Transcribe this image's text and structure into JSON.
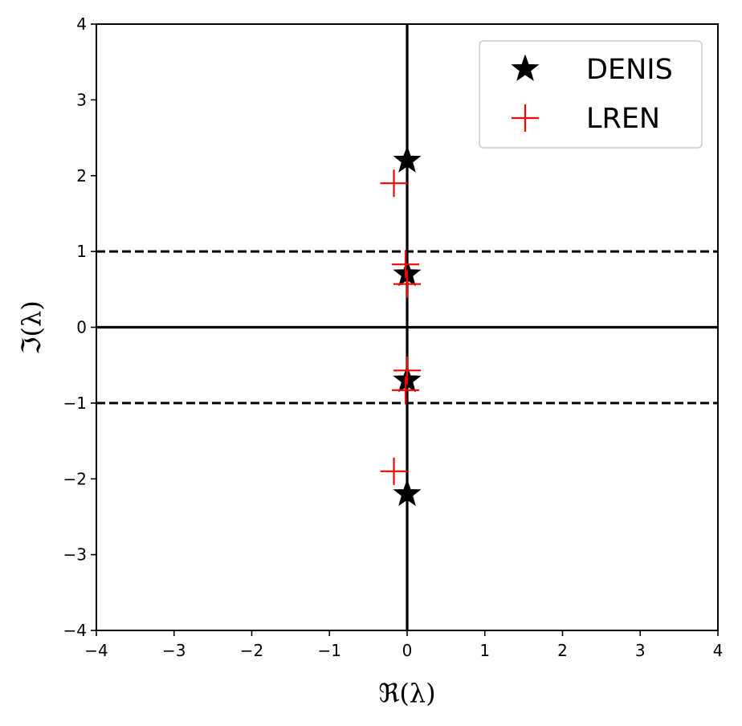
{
  "chart_data": {
    "type": "scatter",
    "title": "",
    "xlabel": "ℜ(λ)",
    "ylabel": "ℑ(λ)",
    "xlim": [
      -4,
      4
    ],
    "ylim": [
      -4,
      4
    ],
    "xticks": [
      -4,
      -3,
      -2,
      -1,
      0,
      1,
      2,
      3,
      4
    ],
    "yticks": [
      -4,
      -3,
      -2,
      -1,
      0,
      1,
      2,
      3,
      4
    ],
    "xtick_labels": [
      "−4",
      "−3",
      "−2",
      "−1",
      "0",
      "1",
      "2",
      "3",
      "4"
    ],
    "ytick_labels": [
      "−4",
      "−3",
      "−2",
      "−1",
      "0",
      "1",
      "2",
      "3",
      "4"
    ],
    "grid": false,
    "legend_position": "top-right",
    "reference_lines": [
      {
        "orientation": "vertical",
        "value": 0,
        "style": "solid"
      },
      {
        "orientation": "horizontal",
        "value": 0,
        "style": "solid"
      },
      {
        "orientation": "horizontal",
        "value": 1,
        "style": "dashed"
      },
      {
        "orientation": "horizontal",
        "value": -1,
        "style": "dashed"
      }
    ],
    "series": [
      {
        "name": "DENIS",
        "marker": "star",
        "color": "#000000",
        "points": [
          {
            "x": 0.0,
            "y": 2.2
          },
          {
            "x": 0.0,
            "y": 0.7
          },
          {
            "x": 0.0,
            "y": -0.7
          },
          {
            "x": 0.0,
            "y": -2.2
          }
        ]
      },
      {
        "name": "LREN",
        "marker": "plus",
        "color": "#ff0000",
        "points": [
          {
            "x": -0.17,
            "y": 1.9
          },
          {
            "x": -0.02,
            "y": 0.83
          },
          {
            "x": 0.0,
            "y": 0.57
          },
          {
            "x": 0.0,
            "y": -0.57
          },
          {
            "x": -0.02,
            "y": -0.83
          },
          {
            "x": -0.17,
            "y": -1.9
          }
        ]
      }
    ]
  }
}
